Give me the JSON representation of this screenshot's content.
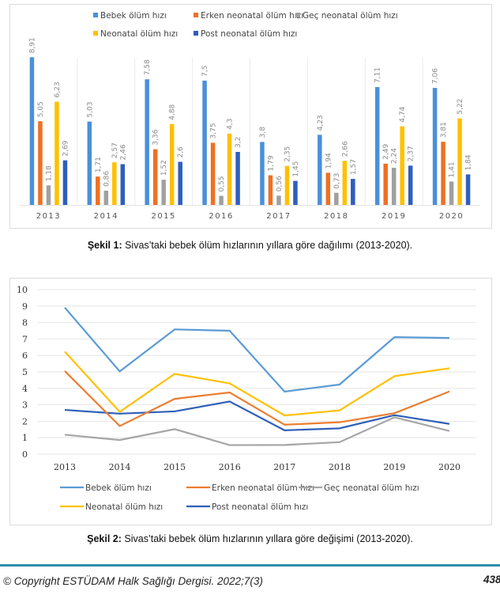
{
  "chart_data": [
    {
      "type": "bar",
      "title": "",
      "xlabel": "",
      "ylabel": "",
      "ylim": [
        0,
        10
      ],
      "grid": false,
      "legend_position": "top",
      "categories": [
        "2013",
        "2014",
        "2015",
        "2016",
        "2017",
        "2018",
        "2019",
        "2020"
      ],
      "series": [
        {
          "name": "Bebek ölüm hızı",
          "color": "#4a90d9",
          "values": [
            8.91,
            5.03,
            7.58,
            7.5,
            3.8,
            4.23,
            7.11,
            7.06
          ],
          "labels": [
            "8,91",
            "5,03",
            "7,58",
            "7,5",
            "3,8",
            "4,23",
            "7,11",
            "7,06"
          ]
        },
        {
          "name": "Erken neonatal ölüm hızı",
          "color": "#f07023",
          "values": [
            5.05,
            1.71,
            3.36,
            3.75,
            1.79,
            1.94,
            2.49,
            3.81
          ],
          "labels": [
            "5,05",
            "1,71",
            "3,36",
            "3,75",
            "1,79",
            "1,94",
            "2,49",
            "3,81"
          ]
        },
        {
          "name": "Geç neonatal ölüm hızı",
          "color": "#a0a0a0",
          "values": [
            1.18,
            0.86,
            1.52,
            0.55,
            0.56,
            0.73,
            2.24,
            1.41
          ],
          "labels": [
            "1,18",
            "0,86",
            "1,52",
            "0,55",
            "0,56",
            "0,73",
            "2,24",
            "1,41"
          ]
        },
        {
          "name": "Neonatal ölüm hızı",
          "color": "#ffc000",
          "values": [
            6.23,
            2.57,
            4.88,
            4.3,
            2.35,
            2.66,
            4.74,
            5.22
          ],
          "labels": [
            "6,23",
            "2,57",
            "4,88",
            "4,3",
            "2,35",
            "2,66",
            "4,74",
            "5,22"
          ]
        },
        {
          "name": "Post neonatal ölüm hızı",
          "color": "#2e5ebf",
          "values": [
            2.69,
            2.46,
            2.6,
            3.2,
            1.45,
            1.57,
            2.37,
            1.84
          ],
          "labels": [
            "2,69",
            "2,46",
            "2,6",
            "3,2",
            "1,45",
            "1,57",
            "2,37",
            "1,84"
          ]
        }
      ]
    },
    {
      "type": "line",
      "title": "",
      "xlabel": "",
      "ylabel": "",
      "ylim": [
        0,
        10
      ],
      "yticks": [
        "0",
        "1",
        "2",
        "3",
        "4",
        "5",
        "6",
        "7",
        "8",
        "9",
        "10"
      ],
      "grid": true,
      "legend_position": "bottom",
      "categories": [
        "2013",
        "2014",
        "2015",
        "2016",
        "2017",
        "2018",
        "2019",
        "2020"
      ],
      "series": [
        {
          "name": "Bebek ölüm hızı",
          "color": "#5b9bd5",
          "values": [
            8.91,
            5.03,
            7.58,
            7.5,
            3.8,
            4.23,
            7.11,
            7.06
          ]
        },
        {
          "name": "Erken neonatal ölüm hızı",
          "color": "#ed7d31",
          "values": [
            5.05,
            1.71,
            3.36,
            3.75,
            1.79,
            1.94,
            2.49,
            3.81
          ]
        },
        {
          "name": "Geç neonatal ölüm hızı",
          "color": "#a5a5a5",
          "values": [
            1.18,
            0.86,
            1.52,
            0.55,
            0.56,
            0.73,
            2.24,
            1.41
          ]
        },
        {
          "name": "Neonatal ölüm hızı",
          "color": "#ffc000",
          "values": [
            6.23,
            2.57,
            4.88,
            4.3,
            2.35,
            2.66,
            4.74,
            5.22
          ]
        },
        {
          "name": "Post neonatal ölüm hızı",
          "color": "#2f5fb8",
          "values": [
            2.69,
            2.46,
            2.6,
            3.2,
            1.45,
            1.57,
            2.37,
            1.84
          ]
        }
      ]
    }
  ],
  "captions": {
    "fig1_label": "Şekil 1:",
    "fig1_text": " Sivas’taki bebek ölüm hızlarının yıllara göre dağılımı (2013-2020).",
    "fig2_label": "Şekil 2:",
    "fig2_text": " Sivas’taki bebek ölüm hızlarının yıllara göre değişimi (2013-2020)."
  },
  "footer": {
    "copyright": "© Copyright ESTÜDAM Halk Sağlığı Dergisi. 2022;7(3)",
    "page_number": "438",
    "rule_color": "#2a8fa8"
  }
}
